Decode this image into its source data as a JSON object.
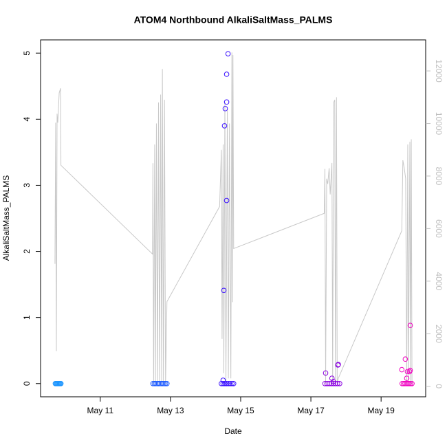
{
  "chart_data": {
    "type": "scatter",
    "title": "ATOM4 Northbound AlkaliSaltMass_PALMS",
    "xlabel": "Date",
    "ylabel": "AlkaliSaltMass_PALMS",
    "xlim": [
      9.3,
      20.27
    ],
    "xticks": [
      {
        "value": 11,
        "label": "May 11"
      },
      {
        "value": 13,
        "label": "May 13"
      },
      {
        "value": 15,
        "label": "May 15"
      },
      {
        "value": 17,
        "label": "May 17"
      },
      {
        "value": 19,
        "label": "May 19"
      }
    ],
    "ylim": [
      -0.2,
      5.2
    ],
    "yticks": [
      0,
      1,
      2,
      3,
      4,
      5
    ],
    "y2lim": [
      -400,
      13180
    ],
    "y2ticks": [
      0,
      2000,
      4000,
      6000,
      8000,
      10000,
      12000
    ],
    "series": [
      {
        "type": "line",
        "axis": "y2",
        "color": "#c8c8c8",
        "x": [
          9.71,
          9.73,
          9.75,
          9.77,
          9.79,
          9.83,
          9.87,
          9.88,
          12.49,
          12.5,
          12.52,
          12.55,
          12.57,
          12.6,
          12.63,
          12.66,
          12.69,
          12.72,
          12.75,
          12.77,
          12.8,
          12.83,
          12.86,
          12.9,
          14.4,
          14.45,
          14.47,
          14.5,
          14.52,
          14.55,
          14.58,
          14.62,
          14.65,
          14.68,
          14.72,
          14.75,
          14.77,
          14.78,
          14.8,
          17.38,
          17.4,
          17.42,
          17.45,
          17.48,
          17.52,
          17.55,
          17.6,
          17.62,
          17.65,
          17.68,
          17.7,
          17.73,
          17.75,
          17.78,
          19.59,
          19.62,
          19.66,
          19.7,
          19.73,
          19.76,
          19.78,
          19.82,
          19.84,
          19.86,
          19.88
        ],
        "values": [
          4660,
          10030,
          1340,
          10370,
          10030,
          11160,
          11340,
          8410,
          5030,
          8490,
          100,
          9200,
          100,
          10000,
          100,
          10800,
          100,
          11100,
          100,
          12070,
          100,
          10900,
          100,
          3220,
          6840,
          9000,
          1800,
          9200,
          500,
          10800,
          200,
          10500,
          300,
          10000,
          300,
          12700,
          3200,
          12600,
          5240,
          6580,
          8270,
          100,
          7900,
          7700,
          8300,
          7300,
          8500,
          100,
          10800,
          10900,
          100,
          11000,
          100,
          300,
          5920,
          8600,
          8300,
          7900,
          100,
          9200,
          100,
          9300,
          100,
          9400,
          100
        ]
      },
      {
        "color": "#1e96ff",
        "x": [
          9.72,
          9.74,
          9.76,
          9.78,
          9.8,
          9.82,
          9.84,
          9.86,
          9.88
        ],
        "values": [
          0,
          0,
          0,
          0,
          0,
          0,
          0,
          0,
          0
        ]
      },
      {
        "color": "#1f5cff",
        "x": [
          12.5,
          12.54,
          12.58,
          12.62,
          12.66,
          12.7,
          12.74,
          12.78,
          12.82,
          12.86,
          12.9
        ],
        "values": [
          0,
          0,
          0,
          0,
          0,
          0,
          0,
          0,
          0,
          0,
          0
        ]
      },
      {
        "color": "#3a10ff",
        "x": [
          14.45,
          14.5,
          14.55,
          14.6,
          14.65,
          14.7,
          14.75,
          14.8,
          14.5,
          14.52,
          14.6,
          14.54,
          14.56,
          14.6,
          14.6,
          14.64
        ],
        "values": [
          0,
          0,
          0,
          0,
          0,
          0,
          0,
          0,
          0.05,
          1.41,
          2.77,
          3.9,
          4.16,
          4.26,
          4.68,
          4.99
        ]
      },
      {
        "color": "#8a00e0",
        "x": [
          17.4,
          17.46,
          17.52,
          17.58,
          17.64,
          17.7,
          17.76,
          17.82,
          17.42,
          17.6,
          17.77,
          17.78,
          17.64
        ],
        "values": [
          0,
          0,
          0,
          0,
          0,
          0,
          0,
          0,
          0.16,
          0.08,
          0.28,
          0.29,
          0.03
        ]
      },
      {
        "color": "#f000c0",
        "x": [
          19.6,
          19.64,
          19.68,
          19.72,
          19.76,
          19.8,
          19.84,
          19.88,
          19.59,
          19.69,
          19.75,
          19.83,
          19.83,
          19.73,
          19.81
        ],
        "values": [
          0,
          0,
          0,
          0,
          0,
          0,
          0,
          0,
          0.21,
          0.37,
          0.18,
          0.2,
          0.88,
          0.08,
          0.18
        ]
      }
    ]
  }
}
